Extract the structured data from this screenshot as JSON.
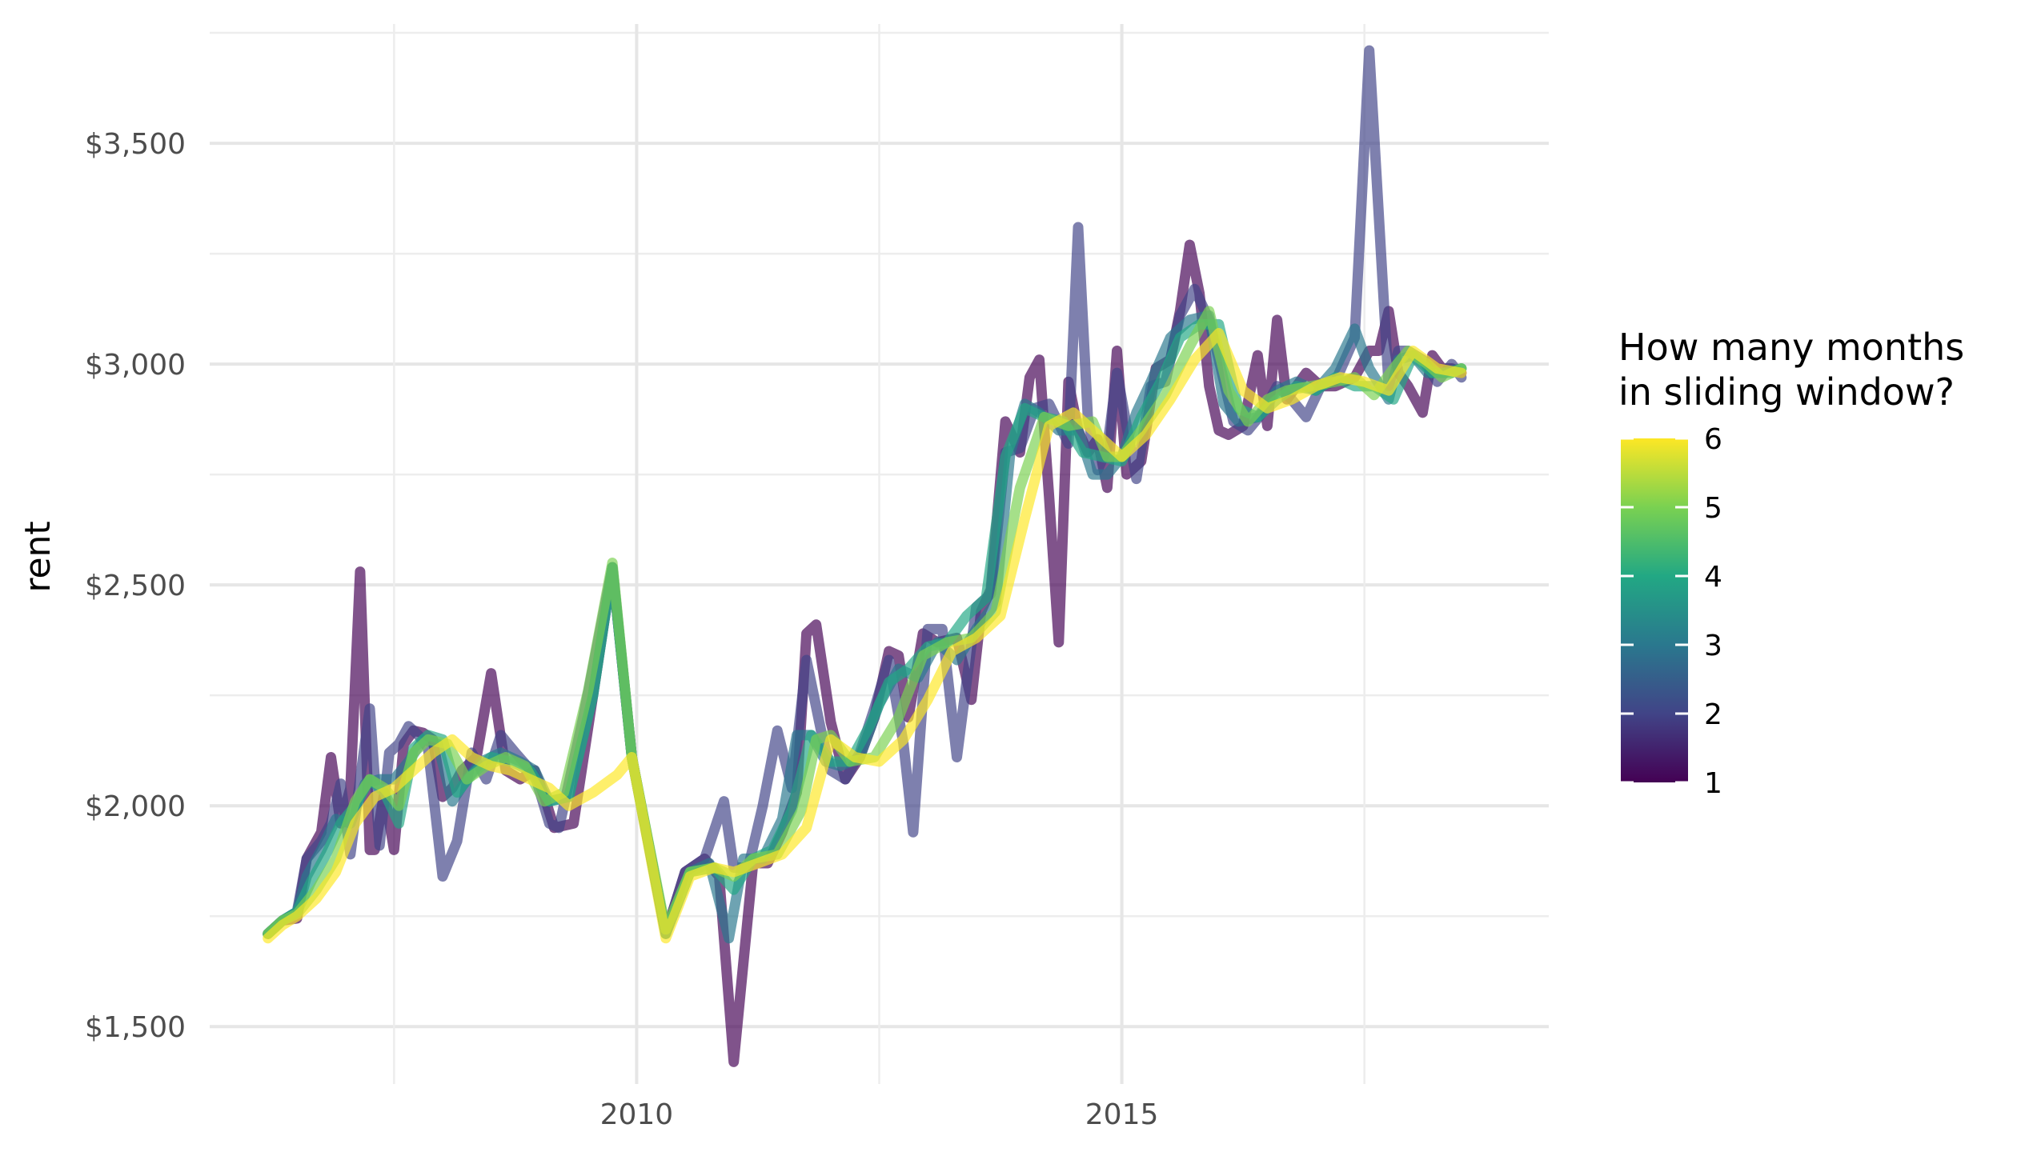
{
  "chart_data": {
    "type": "line",
    "title": "",
    "xlabel": "",
    "ylabel": "rent",
    "xlim": [
      2005.6,
      2019.4
    ],
    "ylim": [
      1370,
      3770
    ],
    "x_ticks": [
      2010,
      2015
    ],
    "x_tick_labels": [
      "2010",
      "2015"
    ],
    "y_ticks": [
      1500,
      2000,
      2500,
      3000,
      3500
    ],
    "y_tick_labels": [
      "$1,500",
      "$2,000",
      "$2,500",
      "$3,000",
      "$3,500"
    ],
    "grid": true,
    "legend": {
      "title_lines": [
        "How many months",
        "in sliding window?"
      ],
      "type": "colorbar",
      "placement": "right",
      "min": 1,
      "max": 6,
      "ticks": [
        1,
        2,
        3,
        4,
        5,
        6
      ],
      "tick_labels": [
        "1",
        "2",
        "3",
        "4",
        "5",
        "6"
      ],
      "colors": [
        "#440154",
        "#414487",
        "#2a788e",
        "#22a884",
        "#7ad151",
        "#fde725"
      ]
    },
    "series": [
      {
        "window": 1,
        "color": "#440154",
        "x": [
          2006.2,
          2006.35,
          2006.5,
          2006.6,
          2006.75,
          2006.85,
          2006.95,
          2007.05,
          2007.15,
          2007.25,
          2007.3,
          2007.4,
          2007.5,
          2007.6,
          2007.7,
          2007.8,
          2007.9,
          2008.0,
          2008.1,
          2008.2,
          2008.35,
          2008.5,
          2008.65,
          2008.8,
          2008.95,
          2009.05,
          2009.15,
          2009.35,
          2009.55,
          2009.75,
          2009.95,
          2010.3,
          2010.5,
          2010.7,
          2010.85,
          2011.0,
          2011.2,
          2011.35,
          2011.5,
          2011.65,
          2011.75,
          2011.85,
          2012.0,
          2012.15,
          2012.3,
          2012.45,
          2012.6,
          2012.7,
          2012.8,
          2012.95,
          2013.1,
          2013.3,
          2013.45,
          2013.55,
          2013.65,
          2013.8,
          2013.95,
          2014.05,
          2014.15,
          2014.25,
          2014.35,
          2014.45,
          2014.55,
          2014.65,
          2014.75,
          2014.85,
          2014.95,
          2015.05,
          2015.2,
          2015.35,
          2015.5,
          2015.6,
          2015.7,
          2015.8,
          2015.9,
          2016.0,
          2016.1,
          2016.25,
          2016.4,
          2016.5,
          2016.6,
          2016.7,
          2016.8,
          2016.9,
          2017.05,
          2017.2,
          2017.4,
          2017.55,
          2017.65,
          2017.75,
          2017.85,
          2017.95,
          2018.1,
          2018.2,
          2018.3,
          2018.4,
          2018.5
        ],
        "y": [
          1710,
          1740,
          1745,
          1880,
          1940,
          2110,
          1960,
          2040,
          2530,
          1900,
          1900,
          2030,
          1900,
          2140,
          2170,
          2165,
          2150,
          2020,
          2040,
          2080,
          2110,
          2300,
          2080,
          2060,
          2080,
          2020,
          1950,
          1960,
          2250,
          2540,
          2110,
          1710,
          1850,
          1880,
          1840,
          1420,
          1870,
          1870,
          1940,
          2030,
          2390,
          2410,
          2190,
          2060,
          2110,
          2200,
          2350,
          2340,
          2200,
          2390,
          2370,
          2380,
          2240,
          2440,
          2490,
          2870,
          2800,
          2970,
          3010,
          2700,
          2370,
          2960,
          2850,
          2800,
          2830,
          2720,
          3030,
          2750,
          2780,
          2990,
          3010,
          3120,
          3270,
          3160,
          2950,
          2850,
          2840,
          2860,
          3020,
          2860,
          3100,
          2920,
          2950,
          2980,
          2950,
          2950,
          2970,
          3030,
          3030,
          3120,
          2980,
          2950,
          2890,
          3020,
          2990,
          2990,
          2980
        ]
      },
      {
        "window": 2,
        "color": "#414487",
        "x": [
          2006.2,
          2006.35,
          2006.5,
          2006.6,
          2006.75,
          2006.85,
          2006.95,
          2007.05,
          2007.15,
          2007.25,
          2007.35,
          2007.45,
          2007.55,
          2007.65,
          2007.75,
          2007.85,
          2008.0,
          2008.15,
          2008.3,
          2008.45,
          2008.6,
          2008.75,
          2008.95,
          2009.1,
          2009.2,
          2009.45,
          2009.75,
          2009.95,
          2010.3,
          2010.5,
          2010.7,
          2010.9,
          2011.0,
          2011.15,
          2011.3,
          2011.45,
          2011.6,
          2011.75,
          2011.9,
          2012.0,
          2012.15,
          2012.3,
          2012.45,
          2012.6,
          2012.75,
          2012.85,
          2013.0,
          2013.15,
          2013.3,
          2013.5,
          2013.65,
          2013.8,
          2013.95,
          2014.1,
          2014.25,
          2014.45,
          2014.55,
          2014.65,
          2014.75,
          2014.85,
          2014.95,
          2015.05,
          2015.15,
          2015.3,
          2015.45,
          2015.6,
          2015.75,
          2015.9,
          2016.0,
          2016.15,
          2016.3,
          2016.45,
          2016.6,
          2016.75,
          2016.9,
          2017.05,
          2017.2,
          2017.4,
          2017.55,
          2017.75,
          2017.85,
          2017.95,
          2018.1,
          2018.25,
          2018.4,
          2018.5
        ],
        "y": [
          1710,
          1740,
          1760,
          1880,
          1920,
          1960,
          2050,
          1890,
          2060,
          2220,
          1910,
          2120,
          2140,
          2180,
          2160,
          2130,
          1840,
          1920,
          2120,
          2060,
          2160,
          2120,
          2070,
          1960,
          1950,
          2200,
          2540,
          2110,
          1710,
          1850,
          1880,
          2010,
          1860,
          1860,
          2000,
          2170,
          2040,
          2330,
          2170,
          2080,
          2060,
          2120,
          2220,
          2330,
          2140,
          1940,
          2400,
          2400,
          2110,
          2450,
          2480,
          2800,
          2810,
          2900,
          2910,
          2820,
          3310,
          2880,
          2760,
          2810,
          2980,
          2860,
          2740,
          2950,
          2960,
          3110,
          3170,
          3100,
          3010,
          2870,
          2850,
          2890,
          2950,
          2920,
          2880,
          2950,
          2960,
          3060,
          3710,
          2950,
          3030,
          3030,
          3010,
          2960,
          3000,
          2970
        ]
      },
      {
        "window": 3,
        "color": "#2a788e",
        "x": [
          2006.2,
          2006.35,
          2006.5,
          2006.6,
          2006.75,
          2006.9,
          2007.05,
          2007.2,
          2007.35,
          2007.5,
          2007.65,
          2007.8,
          2007.95,
          2008.1,
          2008.25,
          2008.4,
          2008.6,
          2008.8,
          2008.95,
          2009.1,
          2009.3,
          2009.55,
          2009.75,
          2009.95,
          2010.3,
          2010.55,
          2010.75,
          2010.95,
          2011.1,
          2011.3,
          2011.5,
          2011.65,
          2011.8,
          2011.95,
          2012.1,
          2012.3,
          2012.5,
          2012.7,
          2012.9,
          2013.1,
          2013.3,
          2013.5,
          2013.7,
          2013.85,
          2014.0,
          2014.15,
          2014.35,
          2014.55,
          2014.7,
          2014.85,
          2015.0,
          2015.15,
          2015.3,
          2015.5,
          2015.7,
          2015.9,
          2016.05,
          2016.2,
          2016.4,
          2016.6,
          2016.8,
          2017.0,
          2017.2,
          2017.4,
          2017.55,
          2017.75,
          2017.85,
          2018.0,
          2018.15,
          2018.3,
          2018.5
        ],
        "y": [
          1710,
          1740,
          1760,
          1840,
          1900,
          1970,
          1960,
          2050,
          2060,
          2060,
          2100,
          2150,
          2140,
          2010,
          2060,
          2100,
          2120,
          2100,
          2080,
          2010,
          2020,
          2250,
          2540,
          2110,
          1710,
          1850,
          1870,
          1700,
          1880,
          1880,
          1970,
          2160,
          2160,
          2100,
          2090,
          2110,
          2230,
          2310,
          2290,
          2370,
          2330,
          2400,
          2460,
          2800,
          2910,
          2890,
          2850,
          2850,
          2750,
          2750,
          2790,
          2890,
          2960,
          3060,
          3100,
          3110,
          2910,
          2870,
          2880,
          2940,
          2960,
          2940,
          2990,
          3080,
          2990,
          2920,
          3010,
          3020,
          2980,
          2980,
          2990
        ]
      },
      {
        "window": 4,
        "color": "#22a884",
        "x": [
          2006.2,
          2006.35,
          2006.5,
          2006.65,
          2006.8,
          2006.95,
          2007.1,
          2007.25,
          2007.4,
          2007.55,
          2007.7,
          2007.85,
          2008.0,
          2008.15,
          2008.3,
          2008.5,
          2008.7,
          2008.9,
          2009.1,
          2009.3,
          2009.55,
          2009.75,
          2009.95,
          2010.3,
          2010.55,
          2010.8,
          2011.0,
          2011.2,
          2011.4,
          2011.6,
          2011.8,
          2012.0,
          2012.2,
          2012.4,
          2012.6,
          2012.8,
          2013.0,
          2013.2,
          2013.4,
          2013.6,
          2013.8,
          2014.0,
          2014.2,
          2014.4,
          2014.6,
          2014.8,
          2015.0,
          2015.2,
          2015.4,
          2015.6,
          2015.8,
          2016.0,
          2016.2,
          2016.4,
          2016.6,
          2016.8,
          2017.0,
          2017.2,
          2017.4,
          2017.6,
          2017.8,
          2018.0,
          2018.2,
          2018.4,
          2018.5
        ],
        "y": [
          1710,
          1740,
          1760,
          1830,
          1890,
          1960,
          2000,
          2060,
          2030,
          1960,
          2130,
          2160,
          2150,
          2030,
          2070,
          2110,
          2100,
          2080,
          2010,
          2020,
          2250,
          2540,
          2110,
          1710,
          1850,
          1860,
          1810,
          1880,
          1900,
          1990,
          2160,
          2100,
          2100,
          2180,
          2280,
          2310,
          2360,
          2370,
          2430,
          2470,
          2790,
          2900,
          2880,
          2870,
          2800,
          2790,
          2780,
          2880,
          2960,
          3060,
          3090,
          3090,
          2900,
          2880,
          2920,
          2950,
          2940,
          2970,
          2950,
          2950,
          2920,
          3020,
          2980,
          2980,
          2990
        ]
      },
      {
        "window": 5,
        "color": "#7ad151",
        "x": [
          2006.2,
          2006.35,
          2006.5,
          2006.7,
          2006.9,
          2007.1,
          2007.25,
          2007.4,
          2007.55,
          2007.7,
          2007.85,
          2008.05,
          2008.25,
          2008.45,
          2008.65,
          2008.85,
          2009.05,
          2009.25,
          2009.5,
          2009.75,
          2009.95,
          2010.3,
          2010.55,
          2010.8,
          2011.0,
          2011.2,
          2011.45,
          2011.7,
          2011.85,
          2012.0,
          2012.2,
          2012.45,
          2012.7,
          2012.95,
          2013.2,
          2013.45,
          2013.7,
          2013.95,
          2014.2,
          2014.45,
          2014.7,
          2014.85,
          2015.0,
          2015.2,
          2015.45,
          2015.7,
          2015.9,
          2016.1,
          2016.3,
          2016.5,
          2016.7,
          2016.95,
          2017.2,
          2017.4,
          2017.6,
          2017.8,
          2017.95,
          2018.15,
          2018.3,
          2018.5
        ],
        "y": [
          1710,
          1740,
          1755,
          1810,
          1880,
          2010,
          2060,
          2040,
          2000,
          2120,
          2150,
          2140,
          2060,
          2090,
          2110,
          2090,
          2010,
          2030,
          2260,
          2550,
          2110,
          1720,
          1850,
          1860,
          1840,
          1880,
          1890,
          1990,
          2150,
          2160,
          2100,
          2110,
          2200,
          2340,
          2370,
          2380,
          2440,
          2720,
          2880,
          2860,
          2870,
          2790,
          2790,
          2850,
          2930,
          3040,
          3120,
          2940,
          2870,
          2920,
          2940,
          2950,
          2960,
          2970,
          2930,
          2990,
          3030,
          3000,
          2970,
          2990
        ]
      },
      {
        "window": 6,
        "color": "#fde725",
        "x": [
          2006.2,
          2006.35,
          2006.5,
          2006.7,
          2006.9,
          2007.1,
          2007.3,
          2007.5,
          2007.7,
          2007.9,
          2008.1,
          2008.3,
          2008.5,
          2008.7,
          2008.9,
          2009.1,
          2009.3,
          2009.55,
          2009.8,
          2009.95,
          2010.3,
          2010.55,
          2010.8,
          2011.0,
          2011.25,
          2011.5,
          2011.75,
          2012.0,
          2012.25,
          2012.5,
          2012.75,
          2013.0,
          2013.25,
          2013.5,
          2013.75,
          2014.0,
          2014.25,
          2014.5,
          2014.75,
          2015.0,
          2015.25,
          2015.5,
          2015.75,
          2016.0,
          2016.25,
          2016.5,
          2016.75,
          2017.0,
          2017.25,
          2017.5,
          2017.75,
          2018.0,
          2018.25,
          2018.5
        ],
        "y": [
          1700,
          1730,
          1750,
          1790,
          1850,
          1960,
          2020,
          2040,
          2080,
          2120,
          2150,
          2110,
          2090,
          2080,
          2060,
          2040,
          2000,
          2030,
          2070,
          2110,
          1700,
          1840,
          1860,
          1850,
          1870,
          1890,
          1950,
          2150,
          2110,
          2100,
          2150,
          2240,
          2350,
          2380,
          2430,
          2650,
          2860,
          2890,
          2840,
          2790,
          2840,
          2920,
          3010,
          3070,
          2940,
          2900,
          2920,
          2950,
          2970,
          2960,
          2940,
          3030,
          2990,
          2980
        ]
      }
    ]
  }
}
